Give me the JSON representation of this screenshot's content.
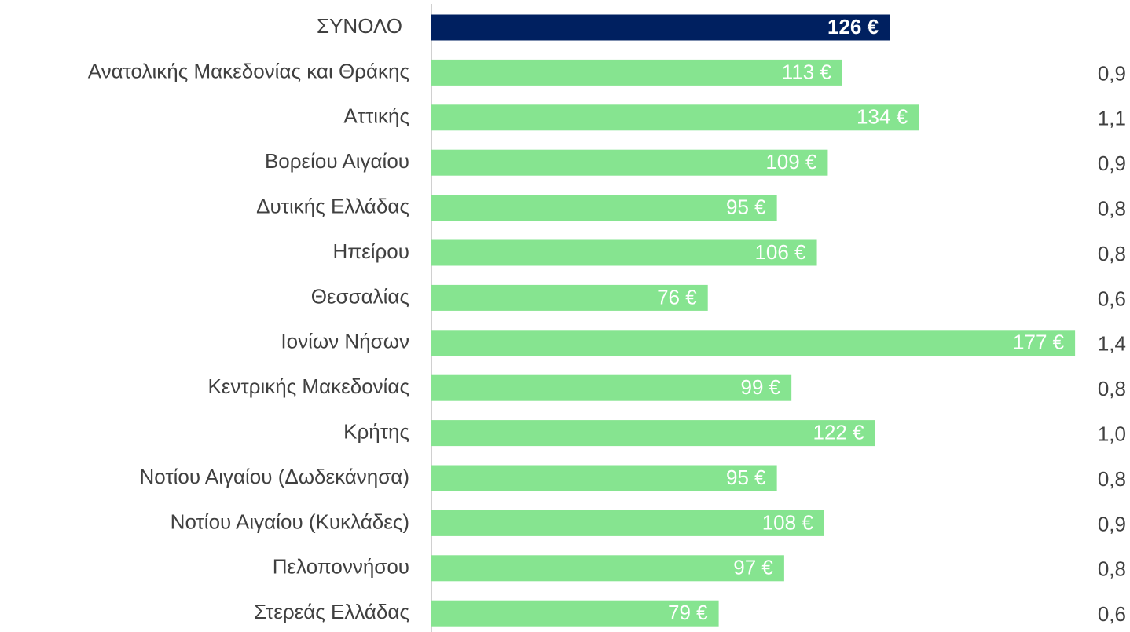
{
  "chart_data": {
    "type": "hbar",
    "categories": [
      "ΣΥΝΟΛΟ",
      "Ανατολικής Μακεδονίας και Θράκης",
      "Αττικής",
      "Βορείου Αιγαίου",
      "Δυτικής Ελλάδας",
      "Ηπείρου",
      "Θεσσαλίας",
      "Ιονίων Νήσων",
      "Κεντρικής Μακεδονίας",
      "Κρήτης",
      "Νοτίου Αιγαίου (Δωδεκάνησα)",
      "Νοτίου Αιγαίου (Κυκλάδες)",
      "Πελοποννήσου",
      "Στερεάς Ελλάδας"
    ],
    "values": [
      126,
      113,
      134,
      109,
      95,
      106,
      76,
      177,
      99,
      122,
      95,
      108,
      97,
      79
    ],
    "value_labels": [
      "126 €",
      "113 €",
      "134 €",
      "109 €",
      "95 €",
      "106 €",
      "76 €",
      "177 €",
      "99 €",
      "122 €",
      "95 €",
      "108 €",
      "97 €",
      "79 €"
    ],
    "colors": [
      "#002060",
      "#86e490",
      "#86e490",
      "#86e490",
      "#86e490",
      "#86e490",
      "#86e490",
      "#86e490",
      "#86e490",
      "#86e490",
      "#86e490",
      "#86e490",
      "#86e490",
      "#86e490"
    ],
    "ratio_labels": [
      null,
      "0,9",
      "1,1",
      "0,9",
      "0,8",
      "0,8",
      "0,6",
      "1,4",
      "0,8",
      "1,0",
      "0,8",
      "0,9",
      "0,8",
      "0,6"
    ],
    "xlim": [
      0,
      180
    ]
  }
}
